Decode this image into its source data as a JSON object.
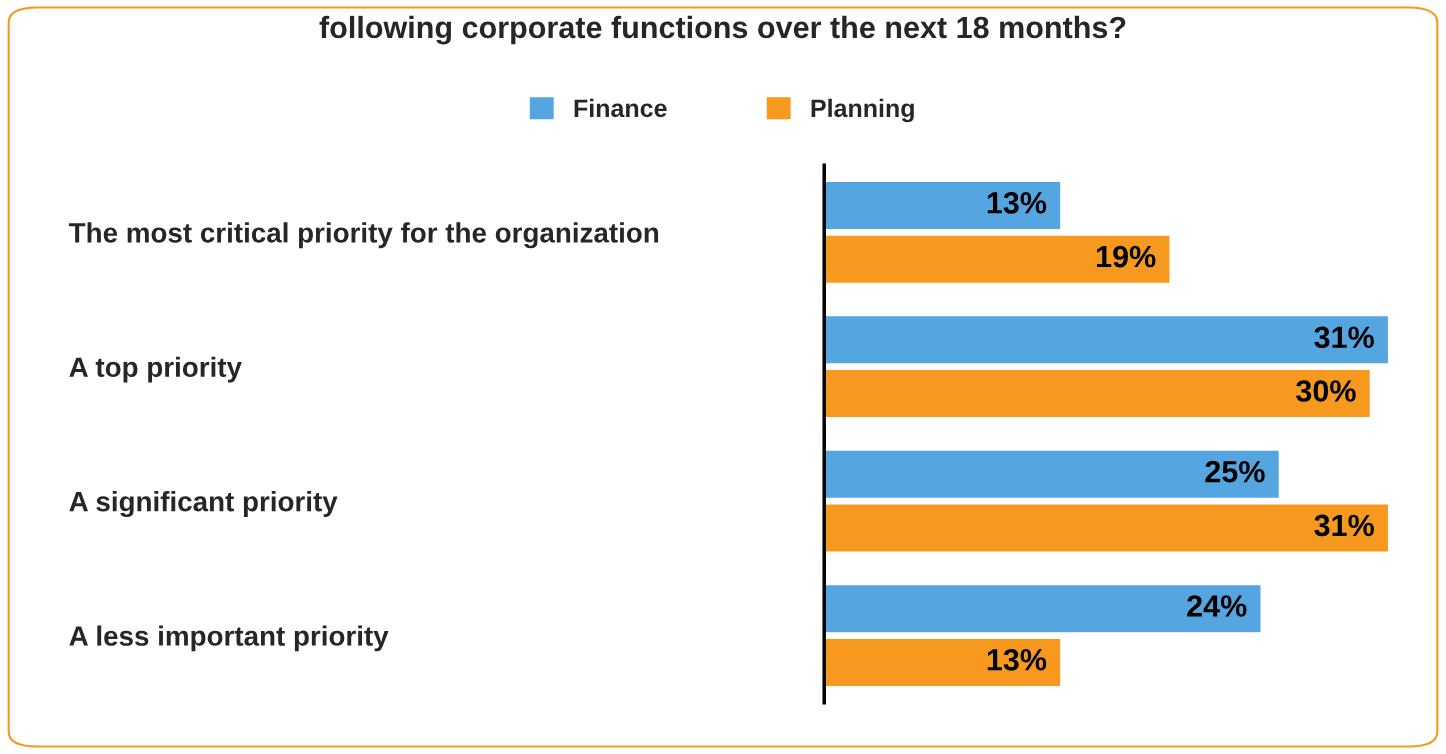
{
  "chart_data": {
    "type": "bar",
    "orientation": "horizontal",
    "title": "following corporate functions over the next 18 months?",
    "categories": [
      "The most critical priority for the organization",
      "A top priority",
      "A significant priority",
      "A less important priority"
    ],
    "series": [
      {
        "name": "Finance",
        "color": "#55a5e0",
        "values": [
          13,
          31,
          25,
          24
        ],
        "value_labels": [
          "13%",
          "31%",
          "25%",
          "24%"
        ]
      },
      {
        "name": "Planning",
        "color": "#f7991f",
        "values": [
          19,
          30,
          31,
          13
        ],
        "value_labels": [
          "19%",
          "30%",
          "31%",
          "13%"
        ]
      }
    ],
    "legend": "top",
    "grid": false
  }
}
